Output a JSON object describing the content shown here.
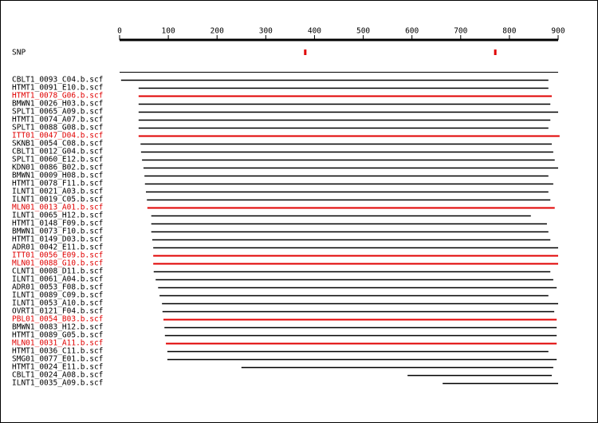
{
  "chart_data": {
    "type": "alignment",
    "xlim": [
      0,
      900
    ],
    "xticks": [
      0,
      100,
      200,
      300,
      400,
      500,
      600,
      700,
      800,
      900
    ],
    "snp": {
      "label": "SNP",
      "positions": [
        381,
        771
      ],
      "color": "#e00000"
    },
    "reads": [
      {
        "name": "CBLT1_0093_C04.b.scf",
        "start": 3,
        "end": 880,
        "color": "#000000"
      },
      {
        "name": "HTMT1_0091_E10.b.scf",
        "start": 39,
        "end": 880,
        "color": "#000000"
      },
      {
        "name": "HTMT1_0078_G06.b.scf",
        "start": 39,
        "end": 887,
        "color": "#e00000"
      },
      {
        "name": "BMWN1_0026_H03.b.scf",
        "start": 39,
        "end": 884,
        "color": "#000000"
      },
      {
        "name": "SPLT1_0065_A09.b.scf",
        "start": 39,
        "end": 900,
        "color": "#000000"
      },
      {
        "name": "HTMT1_0074_A07.b.scf",
        "start": 39,
        "end": 884,
        "color": "#000000"
      },
      {
        "name": "SPLT1_0088_G08.b.scf",
        "start": 39,
        "end": 880,
        "color": "#000000"
      },
      {
        "name": "ITT01_0047_D04.b.scf",
        "start": 39,
        "end": 903,
        "color": "#e00000"
      },
      {
        "name": "SKNB1_0054_C08.b.scf",
        "start": 43,
        "end": 887,
        "color": "#000000"
      },
      {
        "name": "CBLT1_0012_G04.b.scf",
        "start": 44,
        "end": 890,
        "color": "#000000"
      },
      {
        "name": "SPLT1_0060_E12.b.scf",
        "start": 46,
        "end": 893,
        "color": "#000000"
      },
      {
        "name": "KDN01_0086_B02.b.scf",
        "start": 49,
        "end": 900,
        "color": "#000000"
      },
      {
        "name": "BMWN1_0009_H08.b.scf",
        "start": 51,
        "end": 880,
        "color": "#000000"
      },
      {
        "name": "HTMT1_0078_F11.b.scf",
        "start": 52,
        "end": 890,
        "color": "#000000"
      },
      {
        "name": "ILNT1_0021_A03.b.scf",
        "start": 54,
        "end": 880,
        "color": "#000000"
      },
      {
        "name": "ILNT1_0019_C05.b.scf",
        "start": 56,
        "end": 884,
        "color": "#000000"
      },
      {
        "name": "MLN01_0013_A01.b.scf",
        "start": 57,
        "end": 893,
        "color": "#e00000"
      },
      {
        "name": "ILNT1_0065_H12.b.scf",
        "start": 65,
        "end": 844,
        "color": "#000000"
      },
      {
        "name": "HTMT1_0148_F09.b.scf",
        "start": 65,
        "end": 877,
        "color": "#000000"
      },
      {
        "name": "BMWN1_0073_F10.b.scf",
        "start": 65,
        "end": 880,
        "color": "#000000"
      },
      {
        "name": "HTMT1_0149_D03.b.scf",
        "start": 67,
        "end": 884,
        "color": "#000000"
      },
      {
        "name": "ADR01_0042_E11.b.scf",
        "start": 69,
        "end": 900,
        "color": "#000000"
      },
      {
        "name": "ITT01_0056_E09.b.scf",
        "start": 69,
        "end": 900,
        "color": "#e00000"
      },
      {
        "name": "MLN01_0088_G10.b.scf",
        "start": 69,
        "end": 900,
        "color": "#e00000"
      },
      {
        "name": "CLNT1_0008_D11.b.scf",
        "start": 70,
        "end": 884,
        "color": "#000000"
      },
      {
        "name": "ILNT1_0061_A04.b.scf",
        "start": 74,
        "end": 890,
        "color": "#000000"
      },
      {
        "name": "ADR01_0053_F08.b.scf",
        "start": 79,
        "end": 897,
        "color": "#000000"
      },
      {
        "name": "ILNT1_0089_C09.b.scf",
        "start": 82,
        "end": 880,
        "color": "#000000"
      },
      {
        "name": "ILNT1_0053_A10.b.scf",
        "start": 87,
        "end": 900,
        "color": "#000000"
      },
      {
        "name": "OVRT1_0121_F04.b.scf",
        "start": 88,
        "end": 892,
        "color": "#000000"
      },
      {
        "name": "PBL01_0054_B03.b.scf",
        "start": 90,
        "end": 897,
        "color": "#e00000"
      },
      {
        "name": "BMWN1_0083_H12.b.scf",
        "start": 92,
        "end": 897,
        "color": "#000000"
      },
      {
        "name": "HTMT1_0089_G05.b.scf",
        "start": 93,
        "end": 897,
        "color": "#000000"
      },
      {
        "name": "MLN01_0031_A11.b.scf",
        "start": 95,
        "end": 897,
        "color": "#e00000"
      },
      {
        "name": "HTMT1_0036_C11.b.scf",
        "start": 98,
        "end": 880,
        "color": "#000000"
      },
      {
        "name": "SMG01_0077_E01.b.scf",
        "start": 98,
        "end": 897,
        "color": "#000000"
      },
      {
        "name": "HTMT1_0024_E11.b.scf",
        "start": 250,
        "end": 890,
        "color": "#000000"
      },
      {
        "name": "CBLT1_0024_A08.b.scf",
        "start": 591,
        "end": 887,
        "color": "#000000"
      },
      {
        "name": "ILNT1_0035_A09.b.scf",
        "start": 663,
        "end": 900,
        "color": "#000000"
      }
    ]
  }
}
